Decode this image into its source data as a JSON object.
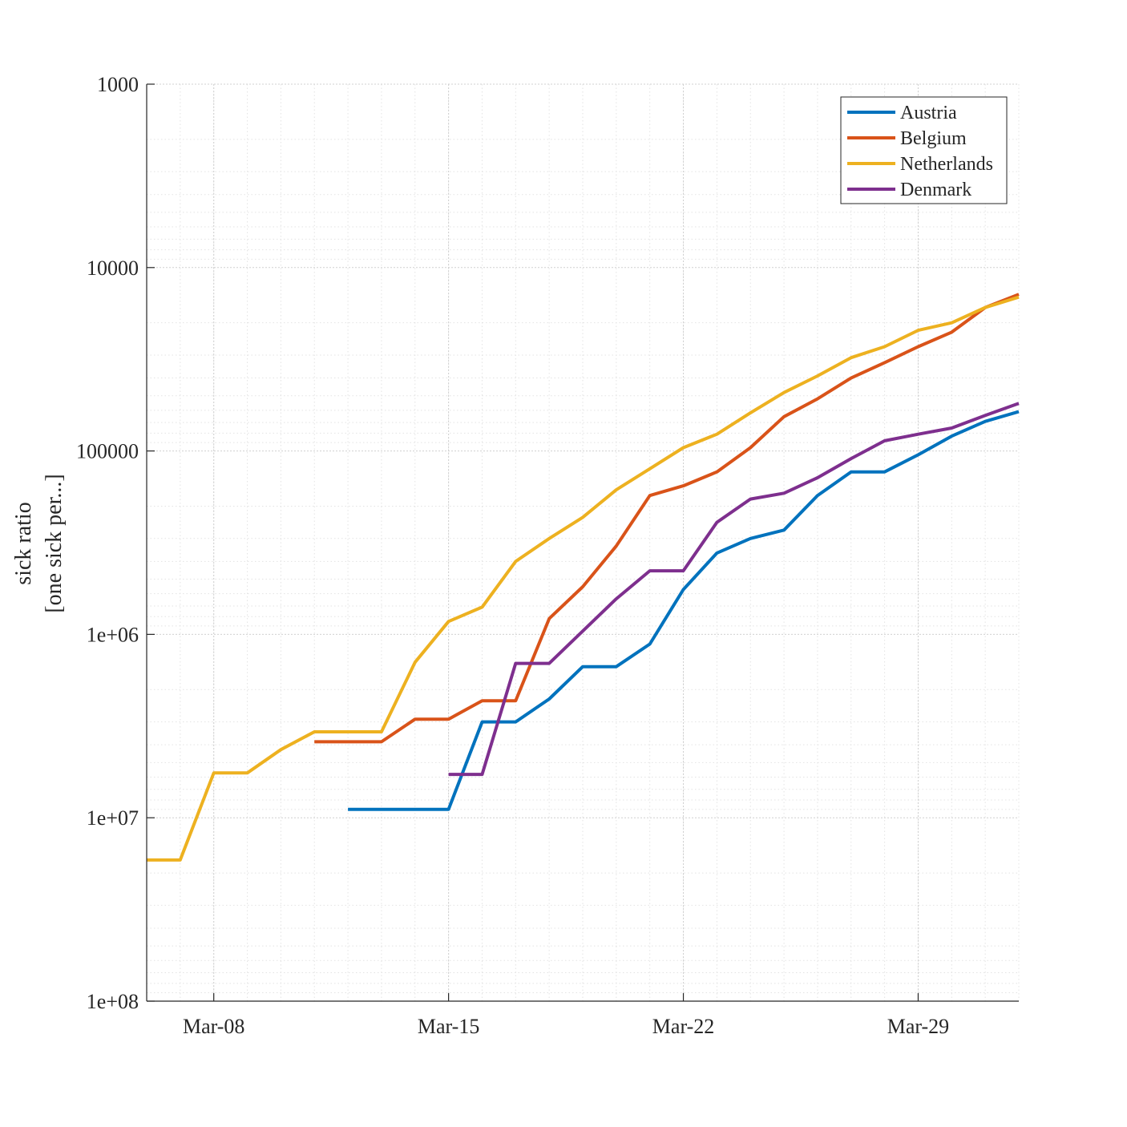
{
  "chart_data": {
    "type": "line",
    "title": "",
    "ylabel": [
      "sick ratio",
      "[one sick per...]"
    ],
    "xlabel": "",
    "y_scale": "log",
    "y_reversed": true,
    "ylim": [
      1000,
      100000000
    ],
    "y_ticks": [
      {
        "value": 1000,
        "label": "1000"
      },
      {
        "value": 10000,
        "label": "10000"
      },
      {
        "value": 100000,
        "label": "100000"
      },
      {
        "value": 1000000,
        "label": "1e+06"
      },
      {
        "value": 10000000,
        "label": "1e+07"
      },
      {
        "value": 100000000,
        "label": "1e+08"
      }
    ],
    "xlim": [
      "2020-03-06",
      "2020-04-01"
    ],
    "x_ticks": [
      {
        "value": "2020-03-08",
        "label": "Mar-08"
      },
      {
        "value": "2020-03-15",
        "label": "Mar-15"
      },
      {
        "value": "2020-03-22",
        "label": "Mar-22"
      },
      {
        "value": "2020-03-29",
        "label": "Mar-29"
      }
    ],
    "grid": true,
    "minor_grid": true,
    "legend": "top-right",
    "series": [
      {
        "name": "Austria",
        "color": "#0072BD",
        "x": [
          "2020-03-12",
          "2020-03-13",
          "2020-03-14",
          "2020-03-15",
          "2020-03-16",
          "2020-03-17",
          "2020-03-18",
          "2020-03-19",
          "2020-03-20",
          "2020-03-21",
          "2020-03-22",
          "2020-03-23",
          "2020-03-24",
          "2020-03-25",
          "2020-03-26",
          "2020-03-27",
          "2020-03-28",
          "2020-03-29",
          "2020-03-30",
          "2020-03-31",
          "2020-04-01"
        ],
        "y": [
          9000000,
          9000000,
          9000000,
          9000000,
          3000000,
          3000000,
          2250000,
          1500000,
          1500000,
          1130000,
          570000,
          360000,
          300000,
          270000,
          175000,
          130000,
          130000,
          105000,
          83000,
          69000,
          61000
        ]
      },
      {
        "name": "Belgium",
        "color": "#D95319",
        "x": [
          "2020-03-11",
          "2020-03-12",
          "2020-03-13",
          "2020-03-14",
          "2020-03-15",
          "2020-03-16",
          "2020-03-17",
          "2020-03-18",
          "2020-03-19",
          "2020-03-20",
          "2020-03-21",
          "2020-03-22",
          "2020-03-23",
          "2020-03-24",
          "2020-03-25",
          "2020-03-26",
          "2020-03-27",
          "2020-03-28",
          "2020-03-29",
          "2020-03-30",
          "2020-03-31",
          "2020-04-01"
        ],
        "y": [
          3850000,
          3850000,
          3850000,
          2900000,
          2900000,
          2300000,
          2300000,
          820000,
          550000,
          330000,
          175000,
          155000,
          130000,
          96000,
          65000,
          52000,
          40000,
          33000,
          27000,
          22500,
          16500,
          14000
        ]
      },
      {
        "name": "Netherlands",
        "color": "#EDB120",
        "x": [
          "2020-03-06",
          "2020-03-07",
          "2020-03-08",
          "2020-03-09",
          "2020-03-10",
          "2020-03-11",
          "2020-03-12",
          "2020-03-13",
          "2020-03-14",
          "2020-03-15",
          "2020-03-16",
          "2020-03-17",
          "2020-03-18",
          "2020-03-19",
          "2020-03-20",
          "2020-03-21",
          "2020-03-22",
          "2020-03-23",
          "2020-03-24",
          "2020-03-25",
          "2020-03-26",
          "2020-03-27",
          "2020-03-28",
          "2020-03-29",
          "2020-03-30",
          "2020-03-31",
          "2020-04-01"
        ],
        "y": [
          17000000,
          17000000,
          5700000,
          5700000,
          4250000,
          3400000,
          3400000,
          3400000,
          1420000,
          850000,
          710000,
          400000,
          300000,
          230000,
          163000,
          125000,
          96000,
          81000,
          62000,
          48000,
          39000,
          31000,
          27000,
          22000,
          20000,
          16500,
          14500
        ]
      },
      {
        "name": "Denmark",
        "color": "#7E2F8E",
        "x": [
          "2020-03-15",
          "2020-03-16",
          "2020-03-17",
          "2020-03-18",
          "2020-03-19",
          "2020-03-20",
          "2020-03-21",
          "2020-03-22",
          "2020-03-23",
          "2020-03-24",
          "2020-03-25",
          "2020-03-26",
          "2020-03-27",
          "2020-03-28",
          "2020-03-29",
          "2020-03-30",
          "2020-03-31",
          "2020-04-01"
        ],
        "y": [
          5800000,
          5800000,
          1440000,
          1440000,
          960000,
          640000,
          450000,
          450000,
          245000,
          183000,
          170000,
          140000,
          110000,
          88000,
          81000,
          75000,
          64000,
          55000
        ]
      }
    ]
  }
}
